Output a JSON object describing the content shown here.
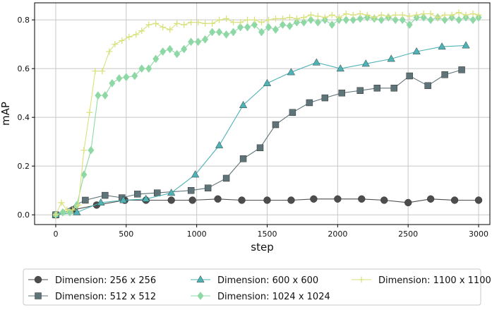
{
  "chart_data": {
    "type": "line",
    "title": "",
    "xlabel": "step",
    "ylabel": "mAP",
    "xlim": [
      -150,
      3080
    ],
    "ylim": [
      -0.04,
      0.87
    ],
    "xticks": [
      0,
      500,
      1000,
      1500,
      2000,
      2500,
      3000
    ],
    "yticks": [
      0.0,
      0.2,
      0.4,
      0.6,
      0.8
    ],
    "ytick_labels": [
      "0.0",
      "0.2",
      "0.4",
      "0.6",
      "0.8"
    ],
    "grid": true,
    "legend_position": "bottom",
    "series": [
      {
        "name": "Dimension: 256 x 256",
        "color": "#4d4d4d",
        "marker": "circle",
        "x": [
          0,
          120,
          290,
          490,
          640,
          820,
          970,
          1150,
          1320,
          1500,
          1670,
          1830,
          2000,
          2170,
          2330,
          2500,
          2660,
          2830,
          3000
        ],
        "y": [
          0.0,
          0.02,
          0.04,
          0.06,
          0.06,
          0.06,
          0.06,
          0.065,
          0.06,
          0.06,
          0.06,
          0.065,
          0.065,
          0.065,
          0.06,
          0.05,
          0.065,
          0.06,
          0.06
        ]
      },
      {
        "name": "Dimension: 512 x 512",
        "color": "#5f7478",
        "marker": "square",
        "x": [
          0,
          210,
          350,
          470,
          580,
          720,
          960,
          1080,
          1210,
          1330,
          1450,
          1560,
          1680,
          1800,
          1910,
          2030,
          2160,
          2280,
          2400,
          2510,
          2640,
          2760,
          2880
        ],
        "y": [
          0.0,
          0.06,
          0.08,
          0.07,
          0.085,
          0.09,
          0.1,
          0.11,
          0.15,
          0.23,
          0.275,
          0.37,
          0.42,
          0.46,
          0.48,
          0.5,
          0.51,
          0.52,
          0.52,
          0.57,
          0.53,
          0.575,
          0.595
        ]
      },
      {
        "name": "Dimension: 600 x 600",
        "color": "#4fb3b6",
        "marker": "triangle",
        "x": [
          0,
          150,
          320,
          480,
          640,
          820,
          990,
          1160,
          1330,
          1500,
          1670,
          1850,
          2020,
          2200,
          2380,
          2560,
          2740,
          2910
        ],
        "y": [
          0.0,
          0.01,
          0.05,
          0.06,
          0.065,
          0.09,
          0.165,
          0.285,
          0.45,
          0.54,
          0.585,
          0.625,
          0.6,
          0.62,
          0.64,
          0.67,
          0.69,
          0.695
        ]
      },
      {
        "name": "Dimension: 1024 x 1024",
        "color": "#8ed8a5",
        "marker": "diamond",
        "x": [
          0,
          50,
          100,
          150,
          200,
          250,
          300,
          350,
          400,
          450,
          500,
          560,
          610,
          660,
          710,
          760,
          810,
          860,
          910,
          960,
          1010,
          1060,
          1110,
          1160,
          1210,
          1260,
          1310,
          1360,
          1410,
          1460,
          1510,
          1560,
          1610,
          1660,
          1710,
          1760,
          1810,
          1860,
          1910,
          1960,
          2010,
          2060,
          2110,
          2160,
          2210,
          2260,
          2310,
          2360,
          2410,
          2460,
          2510,
          2560,
          2610,
          2660,
          2710,
          2760,
          2810,
          2860,
          2910,
          2960,
          3000
        ],
        "y": [
          0.0,
          0.01,
          0.01,
          0.04,
          0.165,
          0.265,
          0.49,
          0.49,
          0.54,
          0.56,
          0.565,
          0.57,
          0.6,
          0.6,
          0.64,
          0.67,
          0.68,
          0.66,
          0.68,
          0.71,
          0.71,
          0.72,
          0.75,
          0.75,
          0.74,
          0.75,
          0.77,
          0.77,
          0.78,
          0.75,
          0.77,
          0.76,
          0.78,
          0.775,
          0.79,
          0.79,
          0.8,
          0.79,
          0.8,
          0.78,
          0.8,
          0.8,
          0.8,
          0.805,
          0.81,
          0.805,
          0.8,
          0.81,
          0.8,
          0.8,
          0.78,
          0.81,
          0.81,
          0.8,
          0.81,
          0.8,
          0.81,
          0.8,
          0.81,
          0.8,
          0.81
        ]
      },
      {
        "name": "Dimension: 1100 x 1100",
        "color": "#d9e27e",
        "marker": "plus",
        "x": [
          0,
          40,
          80,
          120,
          160,
          200,
          240,
          280,
          330,
          380,
          420,
          470,
          520,
          570,
          610,
          660,
          710,
          760,
          810,
          860,
          910,
          960,
          1010,
          1060,
          1110,
          1160,
          1210,
          1260,
          1310,
          1360,
          1410,
          1460,
          1510,
          1560,
          1610,
          1660,
          1710,
          1760,
          1810,
          1860,
          1910,
          1960,
          2010,
          2060,
          2110,
          2160,
          2210,
          2260,
          2310,
          2360,
          2410,
          2460,
          2510,
          2560,
          2610,
          2660,
          2710,
          2760,
          2810,
          2860,
          2910,
          2960,
          3000
        ],
        "y": [
          0.0,
          0.05,
          0.02,
          0.02,
          0.04,
          0.265,
          0.42,
          0.59,
          0.59,
          0.67,
          0.7,
          0.715,
          0.73,
          0.74,
          0.755,
          0.78,
          0.785,
          0.77,
          0.76,
          0.785,
          0.78,
          0.79,
          0.79,
          0.785,
          0.785,
          0.8,
          0.805,
          0.79,
          0.79,
          0.8,
          0.8,
          0.79,
          0.8,
          0.805,
          0.805,
          0.81,
          0.805,
          0.81,
          0.82,
          0.815,
          0.81,
          0.82,
          0.81,
          0.825,
          0.82,
          0.825,
          0.82,
          0.81,
          0.82,
          0.815,
          0.82,
          0.82,
          0.815,
          0.82,
          0.825,
          0.825,
          0.81,
          0.82,
          0.82,
          0.83,
          0.82,
          0.825,
          0.82
        ]
      }
    ]
  }
}
